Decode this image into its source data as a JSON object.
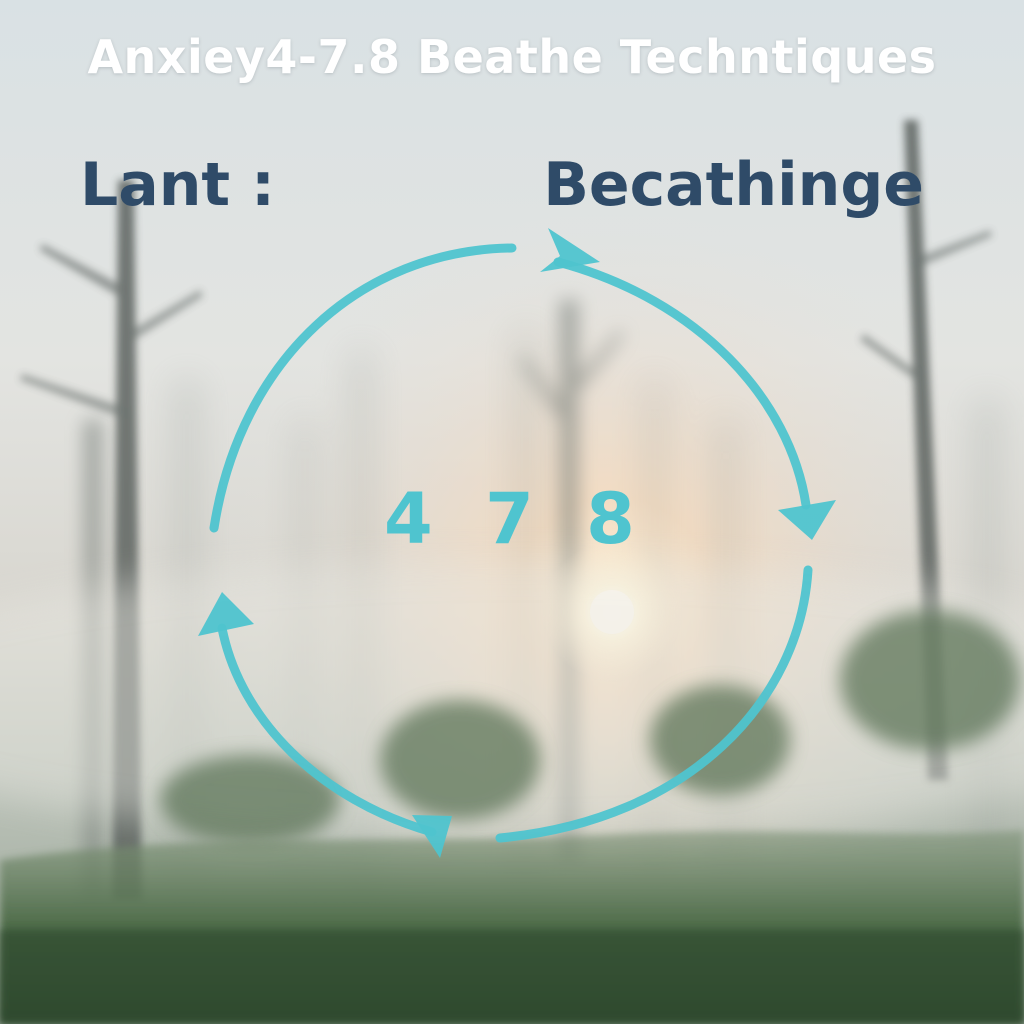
{
  "title": "Anxiey4-7.8 Beathe Techntiques",
  "left_label": "Lant :",
  "right_label": "Becathinge",
  "center_number": "4 7 8",
  "colors": {
    "cycle_arrow": "#4fc4cf",
    "label_text": "#2f4b68",
    "title_text": "#ffffff",
    "fog": "#dfe4e6",
    "sun_glow": "#f6dcc0",
    "grass": "#3f5f3d"
  },
  "icons": [
    "circular-cycle-arrows-icon",
    "sun-glow",
    "foggy-forest-trees"
  ]
}
